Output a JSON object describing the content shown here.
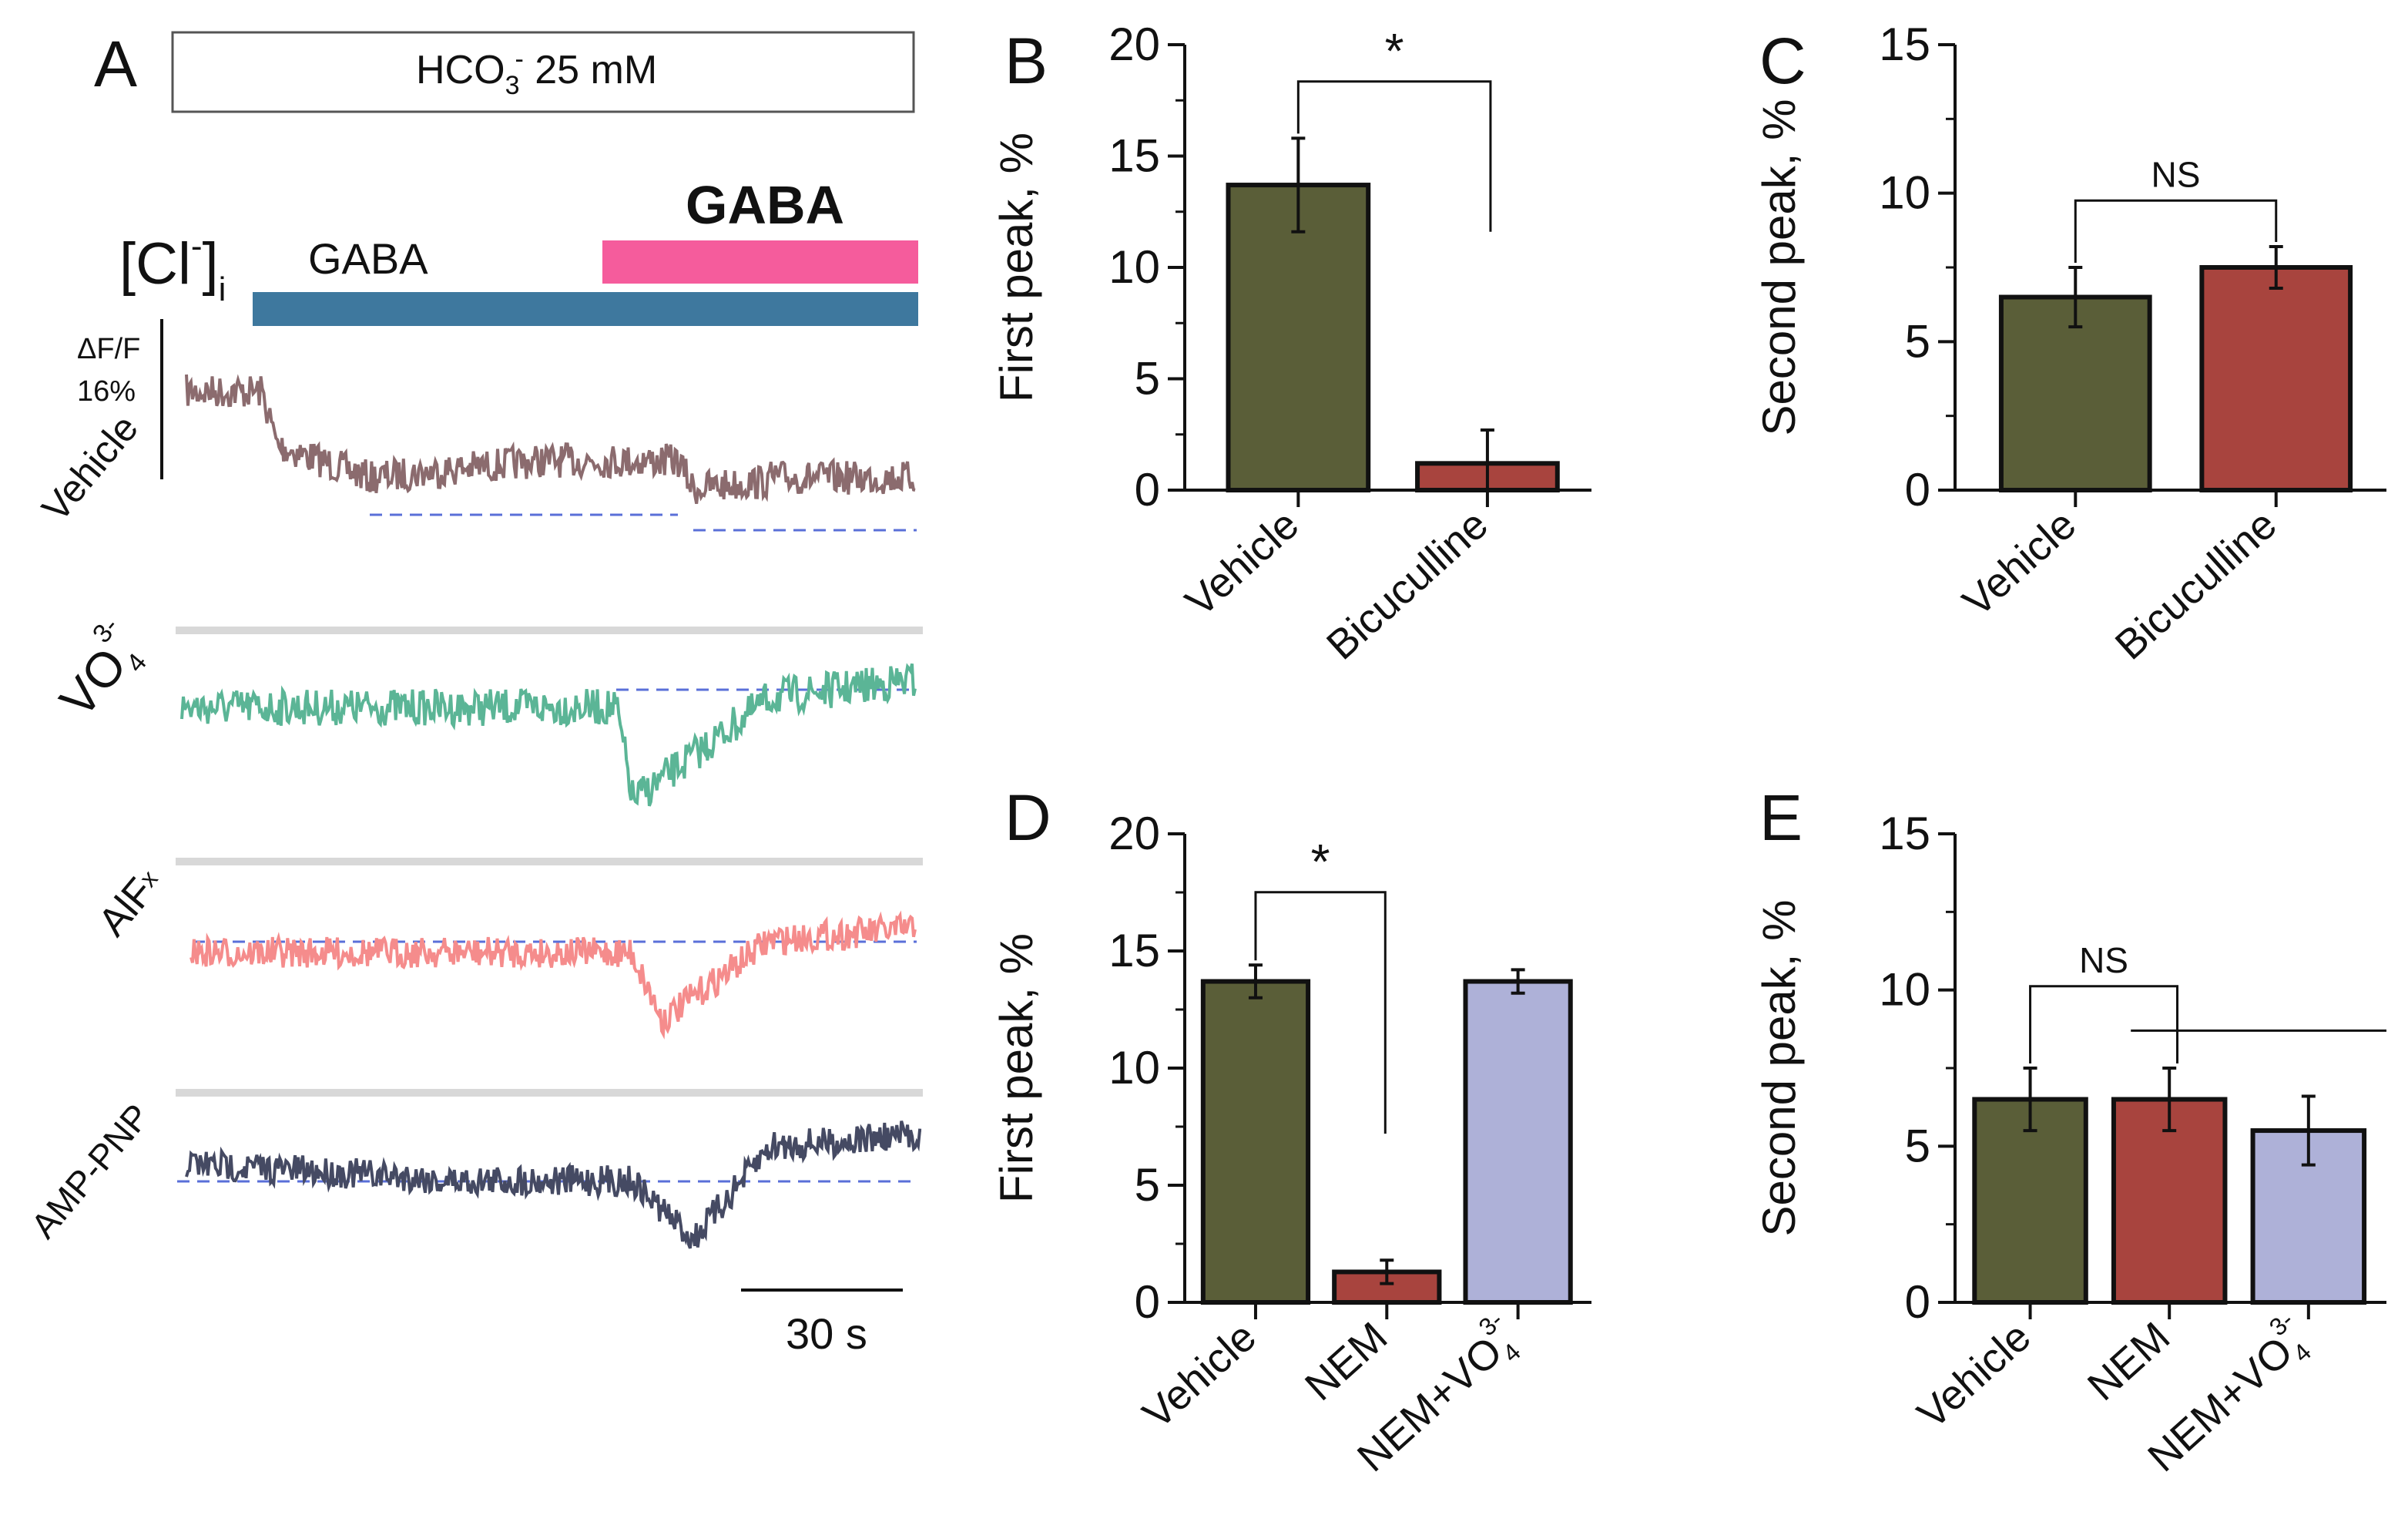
{
  "panel_a": {
    "letter": "A",
    "solution": {
      "main": "HCO",
      "sub": "3",
      "sup": "-",
      "rest": " 25 mM"
    },
    "cl_label": {
      "main": "[Cl",
      "sup": "-",
      "close": "]",
      "sub": "i"
    },
    "gaba_small": "GABA",
    "gaba_big": "GABA",
    "scale_y": {
      "line1": "ΔF/F",
      "line2": "16%"
    },
    "scale_x": "30 s",
    "traces": [
      {
        "label": "Vehicle",
        "color": "#8B6B6E"
      },
      {
        "label": "VO",
        "sub": "4",
        "sup": "3-",
        "color": "#5BB596"
      },
      {
        "label": "AlF",
        "sub": "x",
        "color": "#F58C8C"
      },
      {
        "label": "AMP-PNP",
        "color": "#454A63"
      }
    ],
    "colors": {
      "gaba_bar": "#3E789E",
      "gaba2_bar": "#F55C9C",
      "baseline": "#5A6FD8",
      "separator": "#D8D8D8"
    }
  },
  "chart_data": [
    {
      "panel": "B",
      "type": "bar",
      "categories": [
        "Vehicle",
        "Bicuculline"
      ],
      "values": [
        13.7,
        1.2
      ],
      "errors": [
        2.1,
        1.5
      ],
      "colors": [
        "#5A5E38",
        "#A8443E"
      ],
      "ylabel": "First peak, %",
      "ylim": [
        0,
        20
      ],
      "yticks": [
        "0",
        "5",
        "10",
        "15",
        "20"
      ],
      "annotation": "*"
    },
    {
      "panel": "C",
      "type": "bar",
      "categories": [
        "Vehicle",
        "Bicuculline"
      ],
      "values": [
        6.5,
        7.5
      ],
      "errors": [
        1.0,
        0.7
      ],
      "colors": [
        "#5A5E38",
        "#A8443E"
      ],
      "ylabel": "Second peak, %",
      "ylim": [
        0,
        15
      ],
      "yticks": [
        "0",
        "5",
        "10",
        "15"
      ],
      "annotation": "NS"
    },
    {
      "panel": "D",
      "type": "bar",
      "categories": [
        "Vehicle",
        "NEM",
        "NEM+VO4 3-"
      ],
      "values": [
        13.7,
        1.3,
        13.7
      ],
      "errors": [
        0.7,
        0.5,
        0.5
      ],
      "colors": [
        "#5A5E38",
        "#A8443E",
        "#AEB1D8"
      ],
      "ylabel": "First peak, %",
      "ylim": [
        0,
        20
      ],
      "yticks": [
        "0",
        "5",
        "10",
        "15",
        "20"
      ],
      "annotation": "*"
    },
    {
      "panel": "E",
      "type": "bar",
      "categories": [
        "Vehicle",
        "NEM",
        "NEM+VO4 3-"
      ],
      "values": [
        6.5,
        6.5,
        5.5
      ],
      "errors": [
        1.0,
        1.0,
        1.1
      ],
      "colors": [
        "#5A5E38",
        "#A8443E",
        "#AEB1D8"
      ],
      "ylabel": "Second peak, %",
      "ylim": [
        0,
        15
      ],
      "yticks": [
        "0",
        "5",
        "10",
        "15"
      ],
      "annotation": "NS"
    }
  ]
}
